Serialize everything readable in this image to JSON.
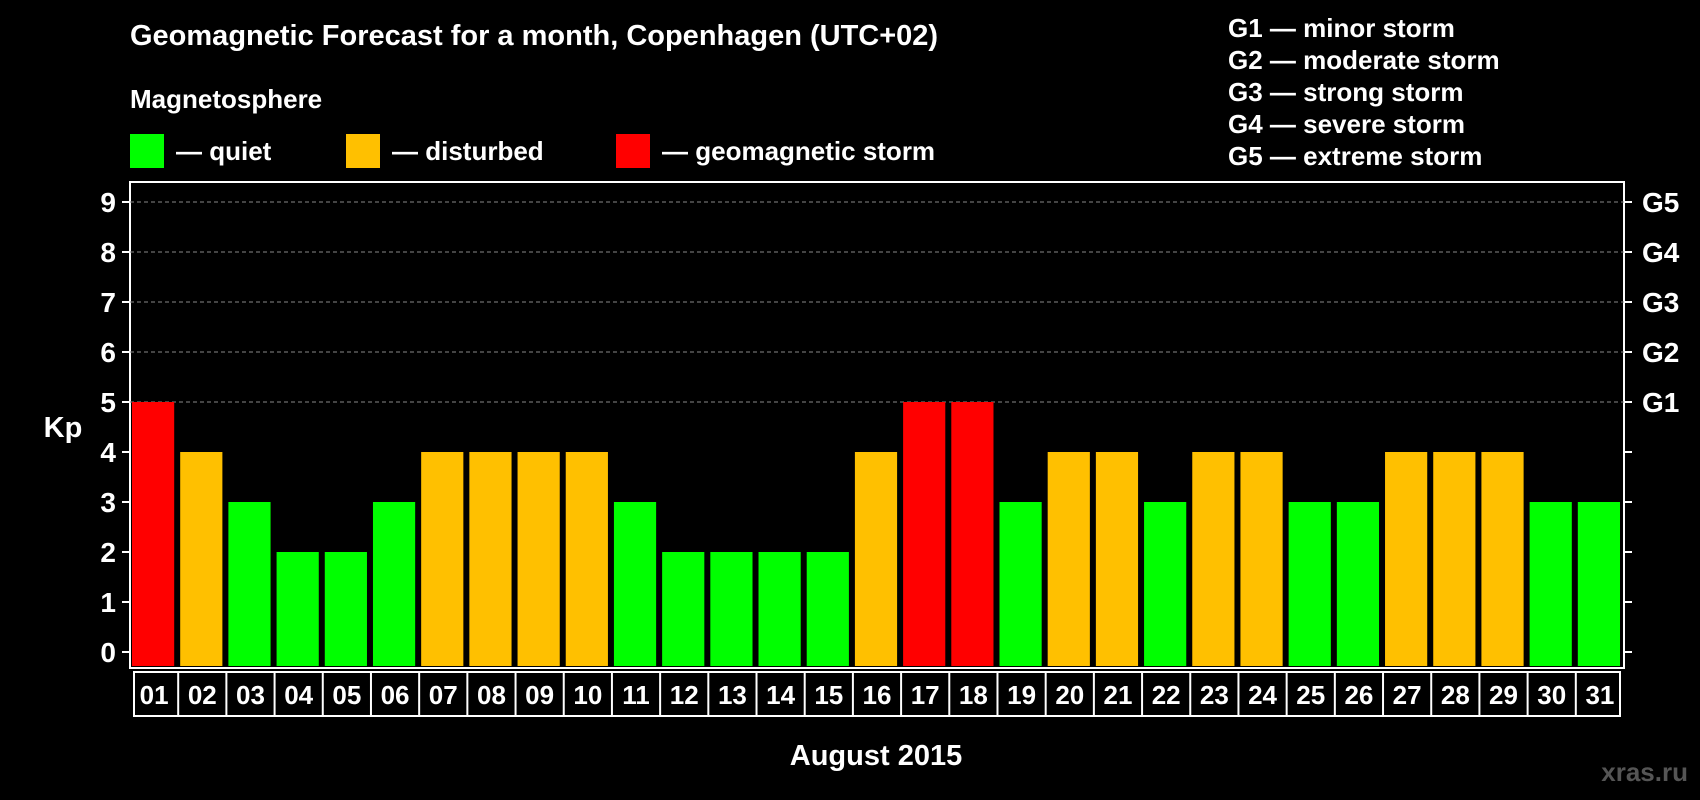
{
  "chart_data": {
    "type": "bar",
    "title": "Geomagnetic Forecast for a month, Copenhagen (UTC+02)",
    "subtitle": "Magnetosphere",
    "legend": [
      {
        "label": "— quiet",
        "color": "#00ff00"
      },
      {
        "label": "— disturbed",
        "color": "#ffc000"
      },
      {
        "label": "— geomagnetic storm",
        "color": "#ff0000"
      }
    ],
    "storm_scale": [
      "G1 — minor storm",
      "G2 — moderate storm",
      "G3 — strong storm",
      "G4 — severe storm",
      "G5 — extreme storm"
    ],
    "ylabel": "Kp",
    "xlabel": "August 2015",
    "ylim": [
      0,
      9
    ],
    "yticks": [
      0,
      1,
      2,
      3,
      4,
      5,
      6,
      7,
      8,
      9
    ],
    "right_ticks": [
      {
        "value": 5,
        "label": "G1"
      },
      {
        "value": 6,
        "label": "G2"
      },
      {
        "value": 7,
        "label": "G3"
      },
      {
        "value": 8,
        "label": "G4"
      },
      {
        "value": 9,
        "label": "G5"
      }
    ],
    "grid": "dashed horizontal at Kp 5–9",
    "categories": [
      "01",
      "02",
      "03",
      "04",
      "05",
      "06",
      "07",
      "08",
      "09",
      "10",
      "11",
      "12",
      "13",
      "14",
      "15",
      "16",
      "17",
      "18",
      "19",
      "20",
      "21",
      "22",
      "23",
      "24",
      "25",
      "26",
      "27",
      "28",
      "29",
      "30",
      "31"
    ],
    "values": [
      5,
      4,
      3,
      2,
      2,
      3,
      4,
      4,
      4,
      4,
      3,
      2,
      2,
      2,
      2,
      4,
      5,
      5,
      3,
      4,
      4,
      3,
      4,
      4,
      3,
      3,
      4,
      4,
      4,
      3,
      3
    ],
    "colors": {
      "quiet": "#00ff00",
      "disturbed": "#ffc000",
      "storm": "#ff0000"
    }
  },
  "watermark": "xras.ru"
}
